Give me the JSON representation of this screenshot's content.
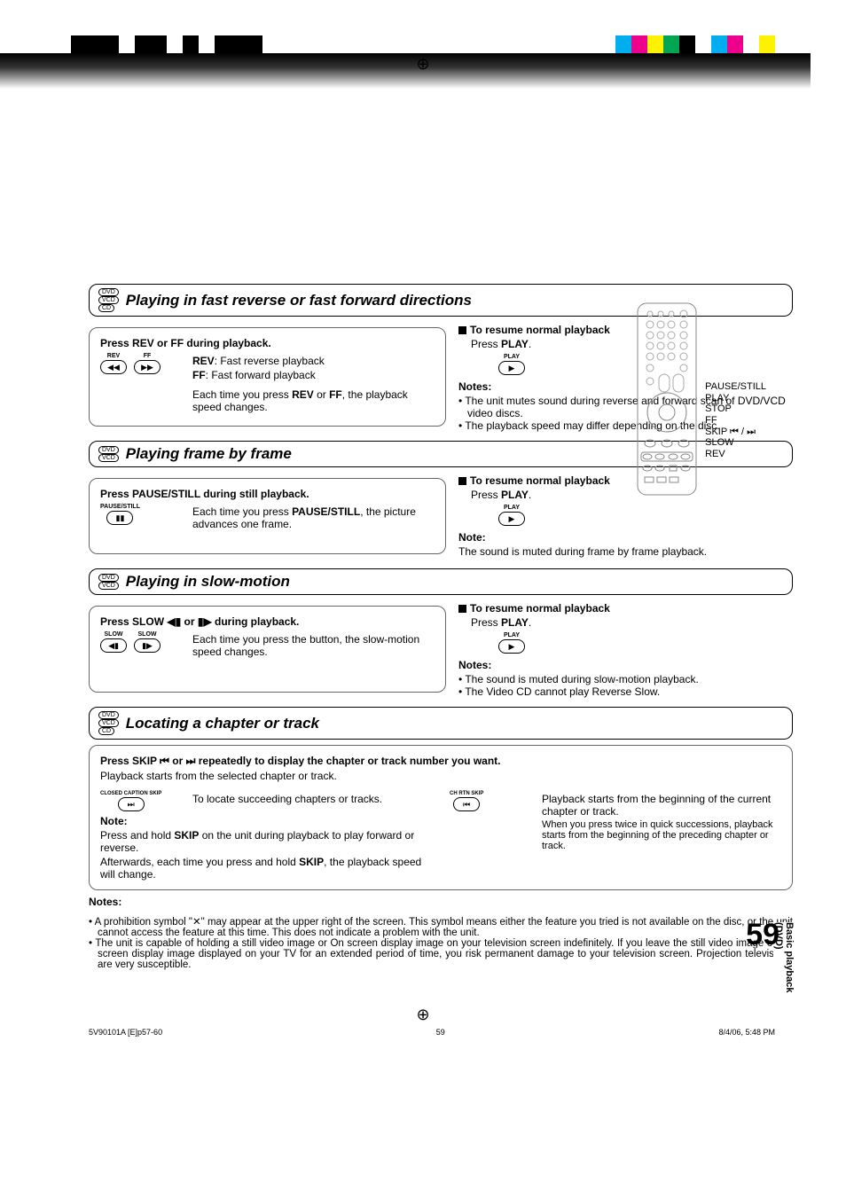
{
  "marks": {
    "left_colors": [
      "#000",
      "#000",
      "#000",
      "#fff",
      "#000",
      "#000",
      "#fff",
      "#000",
      "#fff",
      "#000",
      "#000",
      "#000"
    ],
    "right_colors": [
      "#00aeef",
      "#ec008c",
      "#fff200",
      "#00a651",
      "#000",
      "#fff",
      "#00aeef",
      "#ec008c",
      "#fff",
      "#fff200"
    ]
  },
  "remote_labels": [
    "PAUSE/STILL",
    "PLAY",
    "STOP",
    "FF",
    "SKIP ⏮ / ⏭",
    "SLOW",
    "REV"
  ],
  "side_tab": "Basic playback (DVD)",
  "sections": {
    "ff": {
      "badges": [
        "DVD",
        "VCD",
        "CD"
      ],
      "title": "Playing in fast reverse or fast forward directions",
      "left_head": "Press REV or FF during playback.",
      "rev_lbl": "REV",
      "ff_lbl": "FF",
      "rev_desc": ": Fast reverse playback",
      "ff_desc": ": Fast forward playback",
      "left_p": "Each time you press REV or FF, the playback speed changes.",
      "right_head": "To resume normal playback",
      "right_p": "Press PLAY.",
      "play_lbl": "PLAY",
      "notes_h": "Notes:",
      "notes": [
        "The unit mutes sound during reverse and forward scan of DVD/VCD video discs.",
        "The playback speed may differ depending on the disc."
      ]
    },
    "frame": {
      "badges": [
        "DVD",
        "VCD"
      ],
      "title": "Playing frame by frame",
      "left_head": "Press PAUSE/STILL during still playback.",
      "pause_lbl": "PAUSE/STILL",
      "left_p": "Each time you press PAUSE/STILL, the picture advances one frame.",
      "right_head": "To resume normal playback",
      "right_p": "Press PLAY.",
      "play_lbl": "PLAY",
      "notes_h": "Note:",
      "note": "The sound is muted during frame by frame playback."
    },
    "slow": {
      "badges": [
        "DVD",
        "VCD"
      ],
      "title": "Playing in slow-motion",
      "left_head": "Press SLOW ◀▮ or ▮▶ during playback.",
      "slow_lbl": "SLOW",
      "left_p": "Each time you press the button, the slow-motion speed changes.",
      "right_head": "To resume normal playback",
      "right_p": "Press PLAY.",
      "play_lbl": "PLAY",
      "notes_h": "Notes:",
      "notes": [
        "The sound is muted during slow-motion playback.",
        "The Video CD cannot play Reverse Slow."
      ]
    },
    "locate": {
      "badges": [
        "DVD",
        "VCD",
        "CD"
      ],
      "title": "Locating a chapter or track",
      "head": "Press SKIP ⏮ or ⏭ repeatedly to display the chapter or track number you want.",
      "head2": "Playback starts from the selected chapter or track.",
      "skip_fwd_lbl": "CLOSED CAPTION SKIP",
      "skip_fwd_txt": "To locate succeeding chapters or tracks.",
      "skip_bk_lbl": "CH RTN SKIP",
      "skip_bk_txt1": "Playback starts from the beginning of the current chapter or track.",
      "skip_bk_txt2": "When you press twice in quick successions, playback starts from the beginning of the preceding chapter or track.",
      "note_h": "Note:",
      "note1": "Press and hold SKIP on the unit during playback to play forward or reverse.",
      "note2": "Afterwards, each time you press and hold SKIP, the playback speed will change."
    }
  },
  "foot_notes_h": "Notes:",
  "foot_notes": [
    "A prohibition symbol \"✕\" may appear at the upper right of the screen. This symbol means either the feature you tried is not available on the disc, or the unit cannot access the feature at this time. This does not indicate a problem with the unit.",
    "The unit is capable of holding a still video image or On screen display image on your television screen indefinitely. If you leave the still video image or On screen display image displayed on your TV for an extended period of time, you risk permanent damage to your television screen. Projection televisions are very susceptible."
  ],
  "page_number": "59",
  "footer": {
    "left": "5V90101A [E]p57-60",
    "mid": "59",
    "right": "8/4/06, 5:48 PM"
  }
}
